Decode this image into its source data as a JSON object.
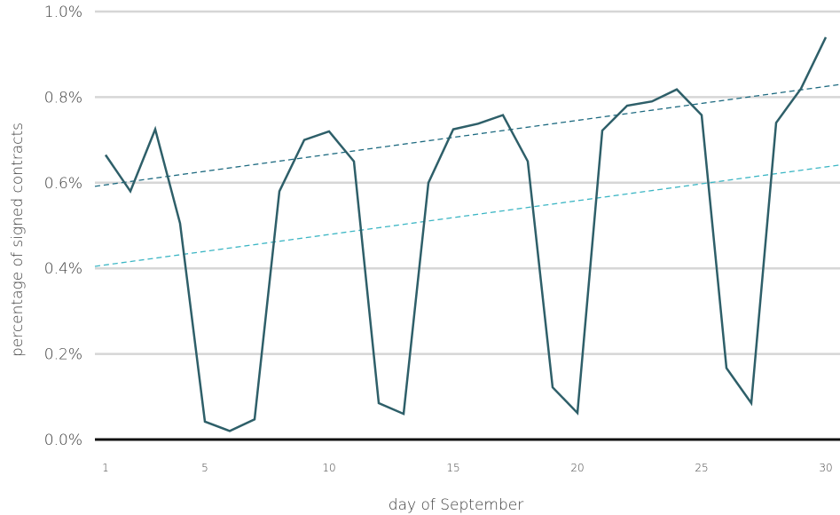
{
  "chart_data": {
    "type": "line",
    "title": "",
    "xlabel": "day of September",
    "ylabel": "percentage of signed contracts",
    "xlim": [
      1,
      30
    ],
    "ylim": [
      0,
      1.0
    ],
    "x_ticks": [
      1,
      5,
      10,
      15,
      20,
      25,
      30
    ],
    "y_ticks": [
      0.0,
      0.2,
      0.4,
      0.6,
      0.8,
      1.0
    ],
    "y_tick_labels": [
      "0.0%",
      "0.2%",
      "0.4%",
      "0.6%",
      "0.8%",
      "1.0%"
    ],
    "grid": "horizontal",
    "legend": "none",
    "x": [
      1,
      2,
      3,
      4,
      5,
      6,
      7,
      8,
      9,
      10,
      11,
      12,
      13,
      14,
      15,
      16,
      17,
      18,
      19,
      20,
      21,
      22,
      23,
      24,
      25,
      26,
      27,
      28,
      29,
      30
    ],
    "series": [
      {
        "values": [
          0.665,
          0.58,
          0.725,
          0.505,
          0.042,
          0.02,
          0.047,
          0.58,
          0.7,
          0.72,
          0.65,
          0.085,
          0.06,
          0.6,
          0.725,
          0.738,
          0.758,
          0.65,
          0.122,
          0.062,
          0.722,
          0.78,
          0.79,
          0.818,
          0.758,
          0.167,
          0.085,
          0.74,
          0.82,
          0.94
        ],
        "color": "#2e5f69",
        "style": "solid"
      }
    ],
    "trendlines": [
      {
        "x": [
          1,
          30
        ],
        "values": [
          0.595,
          0.825
        ],
        "color": "#1d6a80",
        "style": "dashed"
      },
      {
        "x": [
          1,
          30
        ],
        "values": [
          0.408,
          0.637
        ],
        "color": "#3cb6c4",
        "style": "dashed"
      }
    ]
  }
}
